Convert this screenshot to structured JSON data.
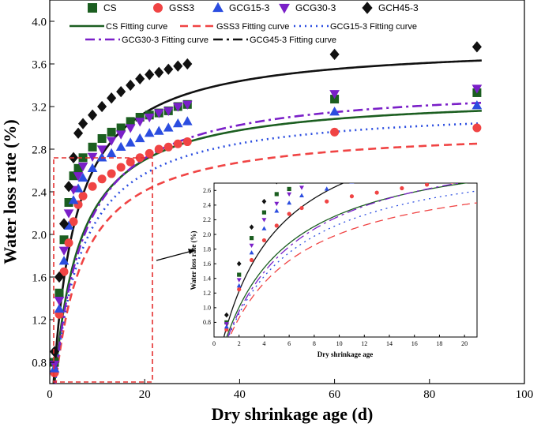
{
  "chart_data": {
    "type": "scatter",
    "xlabel": "Dry shrinkage age  (d)",
    "ylabel": "Water loss rate (%)",
    "xlim": [
      0,
      100
    ],
    "ylim": [
      0.6,
      4.2
    ],
    "xticks": [
      0,
      20,
      40,
      60,
      80,
      100
    ],
    "yticks": [
      0.8,
      1.2,
      1.6,
      2.0,
      2.4,
      2.8,
      3.2,
      3.6,
      4.0
    ],
    "legend": [
      {
        "name": "CS",
        "marker": "square",
        "color": "#1b5e20"
      },
      {
        "name": "GSS3",
        "marker": "circle",
        "color": "#f04444"
      },
      {
        "name": "GCG15-3",
        "marker": "triangle-up",
        "color": "#2b4de0"
      },
      {
        "name": "GCG30-3",
        "marker": "triangle-down",
        "color": "#7a1fc8"
      },
      {
        "name": "GCH45-3",
        "marker": "diamond",
        "color": "#111111"
      },
      {
        "name": "CS Fitting curve",
        "dash": "solid",
        "color": "#1b5e20"
      },
      {
        "name": "GSS3 Fitting curve",
        "dash": "dash",
        "color": "#f04444"
      },
      {
        "name": "GCG15-3 Fitting curve",
        "dash": "dot",
        "color": "#2b4de0"
      },
      {
        "name": "GCG30-3 Fitting curve",
        "dash": "dashdot",
        "color": "#7a1fc8"
      },
      {
        "name": "GCG45-3 Fitting curve",
        "dash": "dashdot",
        "color": "#111111"
      }
    ],
    "x": [
      1,
      2,
      3,
      4,
      5,
      6,
      7,
      9,
      11,
      13,
      15,
      17,
      19,
      21,
      23,
      25,
      27,
      29,
      60,
      90
    ],
    "series": [
      {
        "name": "CS",
        "values": [
          0.8,
          1.45,
          1.95,
          2.3,
          2.55,
          2.62,
          2.72,
          2.82,
          2.9,
          2.96,
          3.0,
          3.06,
          3.1,
          3.12,
          3.14,
          3.16,
          3.2,
          3.22,
          3.27,
          3.33
        ],
        "fit": {
          "a": 3.32,
          "k": 4.6
        }
      },
      {
        "name": "GSS3",
        "values": [
          0.7,
          1.25,
          1.65,
          1.92,
          2.12,
          2.28,
          2.36,
          2.45,
          2.52,
          2.57,
          2.63,
          2.68,
          2.72,
          2.76,
          2.8,
          2.82,
          2.85,
          2.87,
          2.96,
          3.0
        ],
        "fit": {
          "a": 3.01,
          "k": 5.0
        }
      },
      {
        "name": "GCG15-3",
        "values": [
          0.74,
          1.3,
          1.75,
          2.08,
          2.32,
          2.43,
          2.53,
          2.62,
          2.72,
          2.76,
          2.82,
          2.86,
          2.9,
          2.95,
          2.97,
          3.0,
          3.04,
          3.06,
          3.15,
          3.21
        ],
        "fit": {
          "a": 3.21,
          "k": 5.0
        }
      },
      {
        "name": "GCG30-3",
        "values": [
          0.78,
          1.38,
          1.85,
          2.2,
          2.42,
          2.55,
          2.64,
          2.73,
          2.8,
          2.88,
          2.94,
          3.0,
          3.06,
          3.1,
          3.14,
          3.16,
          3.2,
          3.22,
          3.32,
          3.37
        ],
        "fit": {
          "a": 3.42,
          "k": 5.2
        }
      },
      {
        "name": "GCH45-3",
        "values": [
          0.9,
          1.6,
          2.1,
          2.45,
          2.72,
          2.95,
          3.04,
          3.12,
          3.2,
          3.28,
          3.34,
          3.4,
          3.46,
          3.5,
          3.52,
          3.55,
          3.58,
          3.6,
          3.69,
          3.76
        ],
        "fit": {
          "a": 3.8,
          "k": 4.2
        }
      }
    ],
    "inset": {
      "xlabel": "Dry shrinkage age",
      "ylabel": "Water loss rate (%)",
      "xlim": [
        0,
        21
      ],
      "ylim": [
        0.6,
        2.7
      ],
      "xticks": [
        0,
        2,
        4,
        6,
        8,
        10,
        12,
        14,
        16,
        18,
        20
      ],
      "yticks": [
        0.8,
        1.0,
        1.2,
        1.4,
        1.6,
        1.8,
        2.0,
        2.2,
        2.4,
        2.6
      ]
    }
  }
}
